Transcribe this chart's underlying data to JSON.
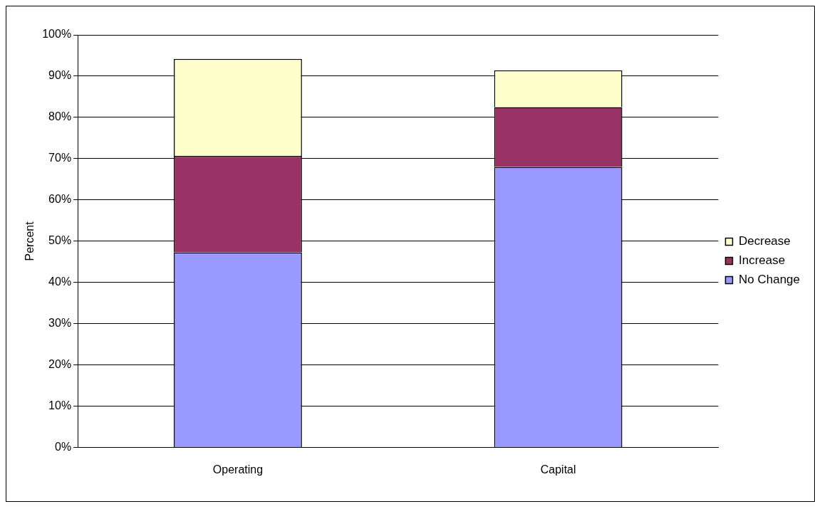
{
  "chart_data": {
    "type": "bar",
    "stacked": true,
    "ylabel": "Percent",
    "categories": [
      "Operating",
      "Capital"
    ],
    "series": [
      {
        "name": "No Change",
        "color": "#9999ff",
        "values": [
          47.3,
          68.0
        ]
      },
      {
        "name": "Increase",
        "color": "#993366",
        "values": [
          23.4,
          14.5
        ]
      },
      {
        "name": "Decrease",
        "color": "#ffffcc",
        "values": [
          23.5,
          8.9
        ]
      }
    ],
    "ylim": [
      0,
      100
    ],
    "yticks": [
      {
        "value": 0,
        "label": "0%"
      },
      {
        "value": 10,
        "label": "10%"
      },
      {
        "value": 20,
        "label": "20%"
      },
      {
        "value": 30,
        "label": "30%"
      },
      {
        "value": 40,
        "label": "40%"
      },
      {
        "value": 50,
        "label": "50%"
      },
      {
        "value": 60,
        "label": "60%"
      },
      {
        "value": 70,
        "label": "70%"
      },
      {
        "value": 80,
        "label": "80%"
      },
      {
        "value": 90,
        "label": "90%"
      },
      {
        "value": 100,
        "label": "100%"
      }
    ],
    "grid": "y",
    "legend": "right"
  }
}
